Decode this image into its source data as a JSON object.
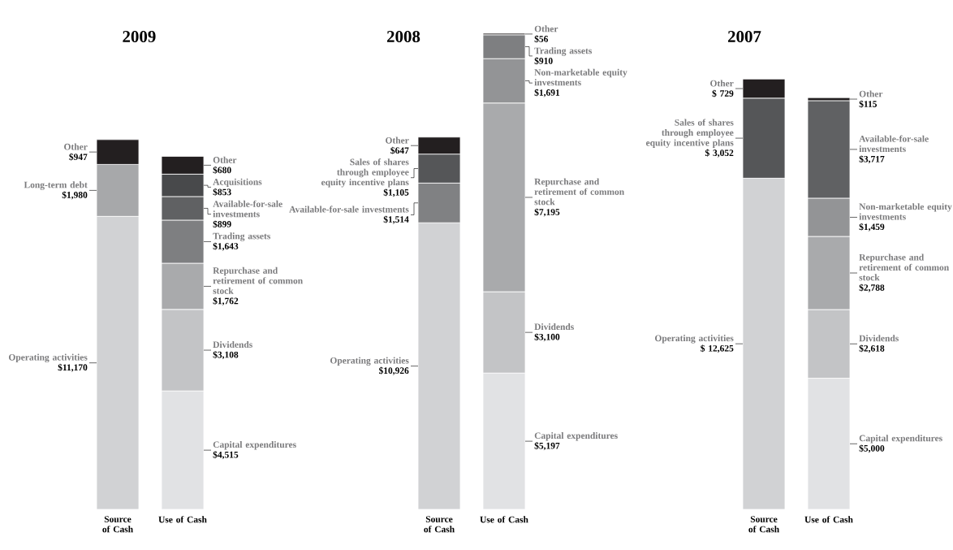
{
  "chart_data": [
    {
      "type": "bar",
      "title": "2009",
      "categories": [
        "Source of Cash",
        "Use of Cash"
      ],
      "stacked": true,
      "series": [
        {
          "name": "Operating activities",
          "color": "#d1d2d4",
          "values": [
            11170,
            null
          ],
          "value_labels": [
            "$11,170",
            null
          ]
        },
        {
          "name": "Long-term debt",
          "color": "#a7a8aa",
          "values": [
            1980,
            null
          ],
          "value_labels": [
            "$1,980",
            null
          ]
        },
        {
          "name": "Other",
          "color": "#231f20",
          "values": [
            947,
            null
          ],
          "value_labels": [
            "$947",
            null
          ]
        },
        {
          "name": "Capital expenditures",
          "color": "#e1e2e4",
          "values": [
            null,
            4515
          ],
          "value_labels": [
            null,
            "$4,515"
          ]
        },
        {
          "name": "Dividends",
          "color": "#c3c4c6",
          "values": [
            null,
            3108
          ],
          "value_labels": [
            null,
            "$3,108"
          ]
        },
        {
          "name": "Repurchase and retirement of common stock",
          "color": "#a9aaac",
          "values": [
            null,
            1762
          ],
          "value_labels": [
            null,
            "$1,762"
          ]
        },
        {
          "name": "Trading assets",
          "color": "#7e7f81",
          "values": [
            null,
            1643
          ],
          "value_labels": [
            null,
            "$1,643"
          ]
        },
        {
          "name": "Available-for-sale investments",
          "color": "#606163",
          "values": [
            null,
            899
          ],
          "value_labels": [
            null,
            "$899"
          ]
        },
        {
          "name": "Acquisitions",
          "color": "#48494b",
          "values": [
            null,
            853
          ],
          "value_labels": [
            null,
            "$853"
          ]
        },
        {
          "name": "Other",
          "color": "#231f20",
          "values": [
            null,
            680
          ],
          "value_labels": [
            null,
            "$680"
          ]
        }
      ]
    },
    {
      "type": "bar",
      "title": "2008",
      "categories": [
        "Source of Cash",
        "Use of Cash"
      ],
      "stacked": true,
      "series": [
        {
          "name": "Operating activities",
          "color": "#d1d2d4",
          "values": [
            10926,
            null
          ],
          "value_labels": [
            "$10,926",
            null
          ]
        },
        {
          "name": "Available-for-sale investments",
          "color": "#808183",
          "values": [
            1514,
            null
          ],
          "value_labels": [
            "$1,514",
            null
          ]
        },
        {
          "name": "Sales of shares through employee equity incentive plans",
          "color": "#555658",
          "values": [
            1105,
            null
          ],
          "value_labels": [
            "$1,105",
            null
          ]
        },
        {
          "name": "Other",
          "color": "#231f20",
          "values": [
            647,
            null
          ],
          "value_labels": [
            "$647",
            null
          ]
        },
        {
          "name": "Capital expenditures",
          "color": "#e1e2e4",
          "values": [
            null,
            5197
          ],
          "value_labels": [
            null,
            "$5,197"
          ]
        },
        {
          "name": "Dividends",
          "color": "#c3c4c6",
          "values": [
            null,
            3100
          ],
          "value_labels": [
            null,
            "$3,100"
          ]
        },
        {
          "name": "Repurchase and retirement of common stock",
          "color": "#a9aaac",
          "values": [
            null,
            7195
          ],
          "value_labels": [
            null,
            "$7,195"
          ]
        },
        {
          "name": "Non-marketable equity investments",
          "color": "#939496",
          "values": [
            null,
            1691
          ],
          "value_labels": [
            null,
            "$1,691"
          ]
        },
        {
          "name": "Trading assets",
          "color": "#7e7f81",
          "values": [
            null,
            910
          ],
          "value_labels": [
            null,
            "$910"
          ]
        },
        {
          "name": "Other",
          "color": "#231f20",
          "values": [
            null,
            56
          ],
          "value_labels": [
            null,
            "$56"
          ]
        }
      ]
    },
    {
      "type": "bar",
      "title": "2007",
      "categories": [
        "Source of Cash",
        "Use of Cash"
      ],
      "stacked": true,
      "series": [
        {
          "name": "Operating activities",
          "color": "#d1d2d4",
          "values": [
            12625,
            null
          ],
          "value_labels": [
            "$ 12,625",
            null
          ]
        },
        {
          "name": "Sales of shares through employee equity incentive plans",
          "color": "#555658",
          "values": [
            3052,
            null
          ],
          "value_labels": [
            "$ 3,052",
            null
          ]
        },
        {
          "name": "Other",
          "color": "#231f20",
          "values": [
            729,
            null
          ],
          "value_labels": [
            "$ 729",
            null
          ]
        },
        {
          "name": "Capital expenditures",
          "color": "#e1e2e4",
          "values": [
            null,
            5000
          ],
          "value_labels": [
            null,
            "$5,000"
          ]
        },
        {
          "name": "Dividends",
          "color": "#c3c4c6",
          "values": [
            null,
            2618
          ],
          "value_labels": [
            null,
            "$2,618"
          ]
        },
        {
          "name": "Repurchase and retirement of common stock",
          "color": "#a9aaac",
          "values": [
            null,
            2788
          ],
          "value_labels": [
            null,
            "$2,788"
          ]
        },
        {
          "name": "Non-marketable equity investments",
          "color": "#939496",
          "values": [
            null,
            1459
          ],
          "value_labels": [
            null,
            "$1,459"
          ]
        },
        {
          "name": "Available-for-sale investments",
          "color": "#606163",
          "values": [
            null,
            3717
          ],
          "value_labels": [
            null,
            "$3,717"
          ]
        },
        {
          "name": "Other",
          "color": "#231f20",
          "values": [
            null,
            115
          ],
          "value_labels": [
            null,
            "$115"
          ]
        }
      ]
    }
  ]
}
